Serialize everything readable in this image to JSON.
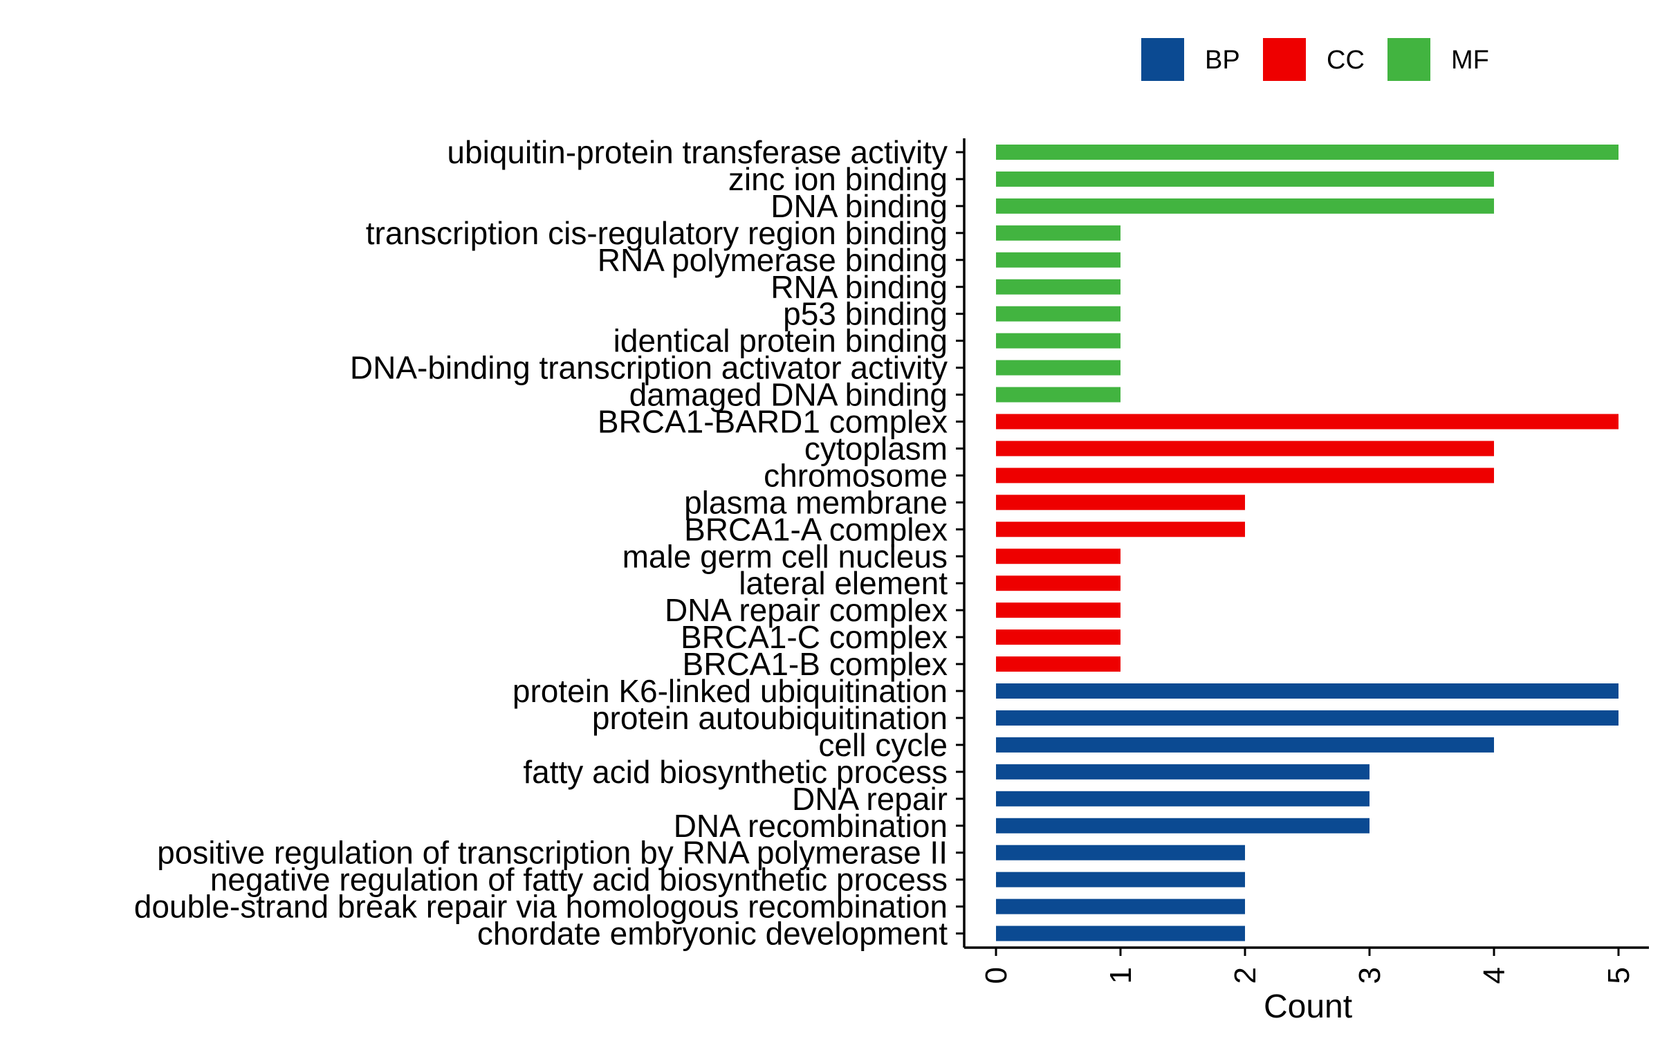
{
  "chart_data": {
    "type": "bar",
    "orientation": "horizontal",
    "title": "",
    "xlabel": "Count",
    "ylabel": "",
    "xlim": [
      0,
      5
    ],
    "x_ticks": [
      "0",
      "1",
      "2",
      "3",
      "4",
      "5"
    ],
    "grid": false,
    "legend_position": "top-right",
    "legend": [
      {
        "name": "BP",
        "color": "#0B4A92"
      },
      {
        "name": "CC",
        "color": "#EE0000"
      },
      {
        "name": "MF",
        "color": "#42B440"
      }
    ],
    "categories": [
      {
        "label": "ubiquitin-protein transferase activity",
        "value": 5,
        "group": "MF"
      },
      {
        "label": "zinc ion binding",
        "value": 4,
        "group": "MF"
      },
      {
        "label": "DNA binding",
        "value": 4,
        "group": "MF"
      },
      {
        "label": "transcription cis-regulatory region binding",
        "value": 1,
        "group": "MF"
      },
      {
        "label": "RNA polymerase binding",
        "value": 1,
        "group": "MF"
      },
      {
        "label": "RNA binding",
        "value": 1,
        "group": "MF"
      },
      {
        "label": "p53 binding",
        "value": 1,
        "group": "MF"
      },
      {
        "label": "identical protein binding",
        "value": 1,
        "group": "MF"
      },
      {
        "label": "DNA-binding transcription activator activity",
        "value": 1,
        "group": "MF"
      },
      {
        "label": "damaged DNA binding",
        "value": 1,
        "group": "MF"
      },
      {
        "label": "BRCA1-BARD1 complex",
        "value": 5,
        "group": "CC"
      },
      {
        "label": "cytoplasm",
        "value": 4,
        "group": "CC"
      },
      {
        "label": "chromosome",
        "value": 4,
        "group": "CC"
      },
      {
        "label": "plasma membrane",
        "value": 2,
        "group": "CC"
      },
      {
        "label": "BRCA1-A complex",
        "value": 2,
        "group": "CC"
      },
      {
        "label": "male germ cell nucleus",
        "value": 1,
        "group": "CC"
      },
      {
        "label": "lateral element",
        "value": 1,
        "group": "CC"
      },
      {
        "label": "DNA repair complex",
        "value": 1,
        "group": "CC"
      },
      {
        "label": "BRCA1-C complex",
        "value": 1,
        "group": "CC"
      },
      {
        "label": "BRCA1-B complex",
        "value": 1,
        "group": "CC"
      },
      {
        "label": "protein K6-linked ubiquitination",
        "value": 5,
        "group": "BP"
      },
      {
        "label": "protein autoubiquitination",
        "value": 5,
        "group": "BP"
      },
      {
        "label": "cell cycle",
        "value": 4,
        "group": "BP"
      },
      {
        "label": "fatty acid biosynthetic process",
        "value": 3,
        "group": "BP"
      },
      {
        "label": "DNA repair",
        "value": 3,
        "group": "BP"
      },
      {
        "label": "DNA recombination",
        "value": 3,
        "group": "BP"
      },
      {
        "label": "positive regulation of transcription by RNA polymerase II",
        "value": 2,
        "group": "BP"
      },
      {
        "label": "negative regulation of fatty acid biosynthetic process",
        "value": 2,
        "group": "BP"
      },
      {
        "label": "double-strand break repair via homologous recombination",
        "value": 2,
        "group": "BP"
      },
      {
        "label": "chordate embryonic development",
        "value": 2,
        "group": "BP"
      }
    ]
  }
}
